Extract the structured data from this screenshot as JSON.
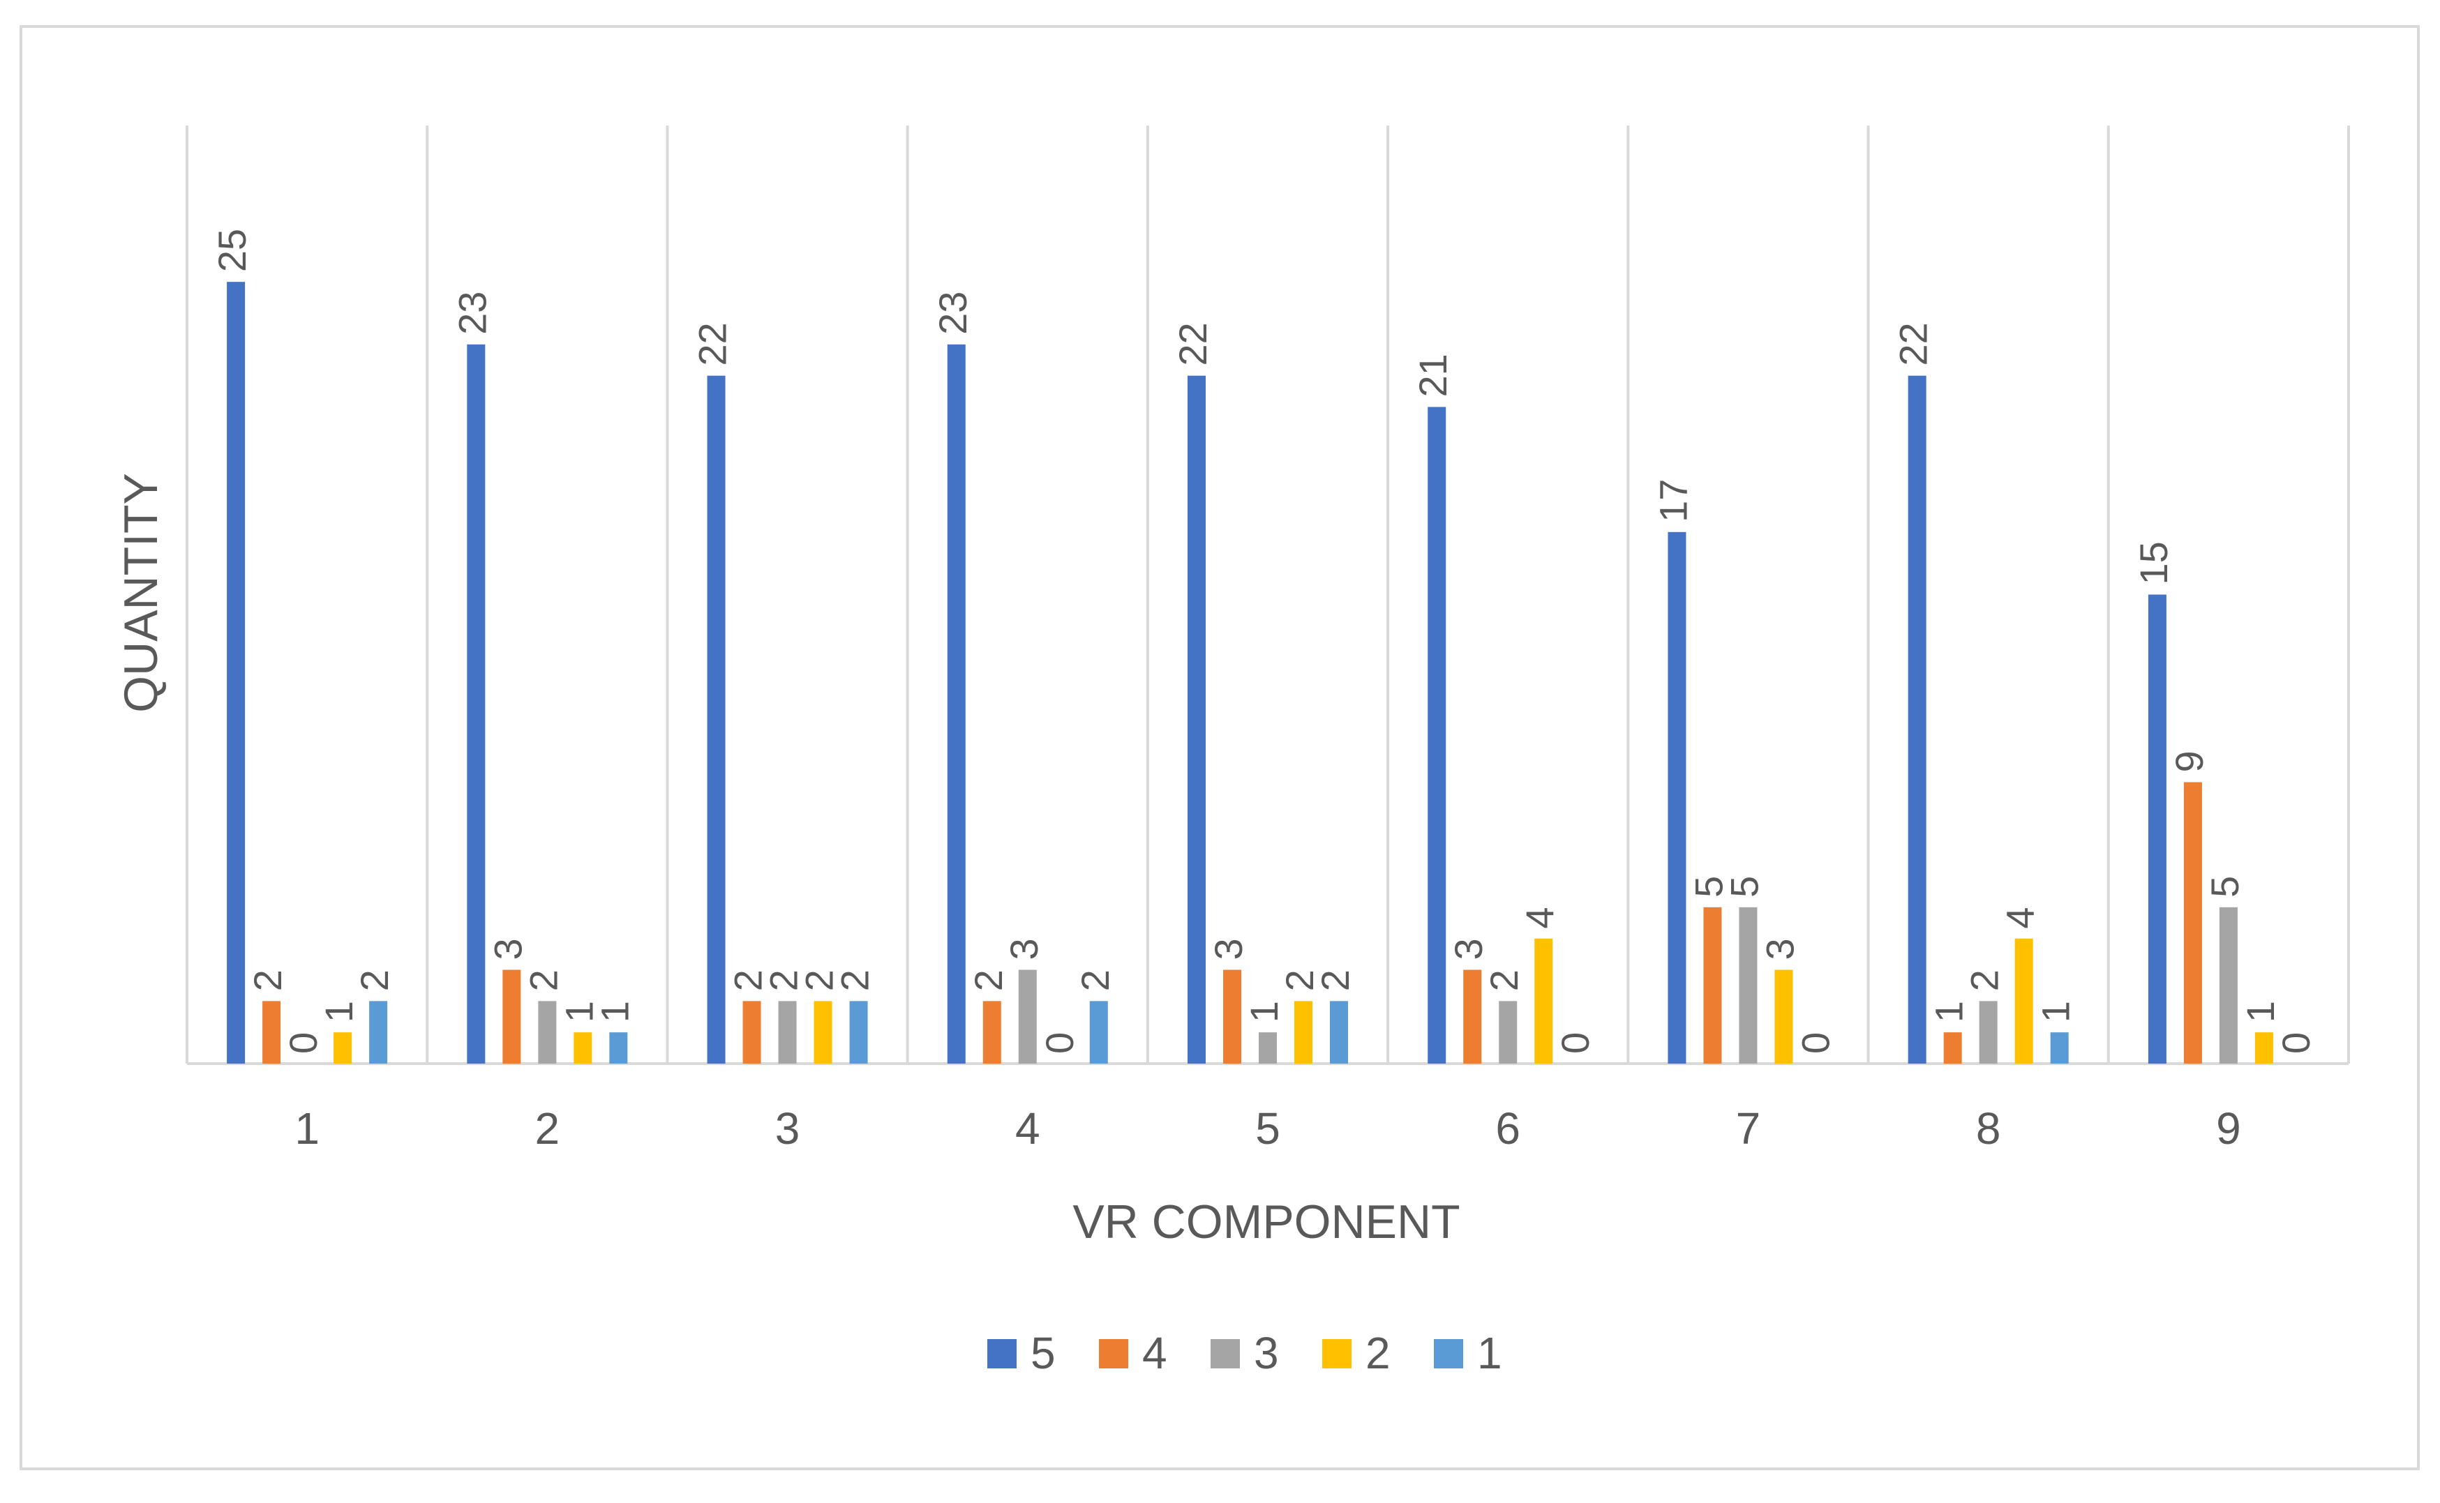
{
  "chart_data": {
    "type": "bar",
    "title": "",
    "xlabel": "VR COMPONENT",
    "ylabel": "QUANTITY",
    "categories": [
      "1",
      "2",
      "3",
      "4",
      "5",
      "6",
      "7",
      "8",
      "9"
    ],
    "ylim": [
      0,
      30
    ],
    "grid": "vertical category separators",
    "legend_position": "bottom",
    "series": [
      {
        "name": "5",
        "color": "#4472C4",
        "values": [
          25,
          23,
          22,
          23,
          22,
          21,
          17,
          22,
          15
        ]
      },
      {
        "name": "4",
        "color": "#ED7D31",
        "values": [
          2,
          3,
          2,
          2,
          3,
          3,
          5,
          1,
          9
        ]
      },
      {
        "name": "3",
        "color": "#A5A5A5",
        "values": [
          0,
          2,
          2,
          3,
          1,
          2,
          5,
          2,
          5
        ]
      },
      {
        "name": "2",
        "color": "#FFC000",
        "values": [
          1,
          1,
          2,
          0,
          2,
          4,
          3,
          4,
          1
        ]
      },
      {
        "name": "1",
        "color": "#5B9BD5",
        "values": [
          2,
          1,
          2,
          2,
          2,
          0,
          0,
          1,
          0
        ]
      }
    ]
  }
}
